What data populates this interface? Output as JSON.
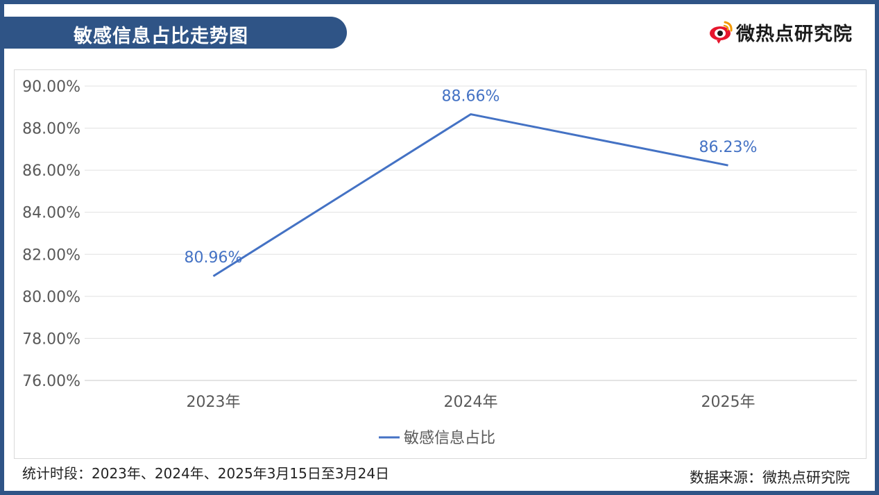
{
  "header": {
    "title": "敏感信息占比走势图",
    "brand": "微热点研究院",
    "brand_icon": "weibo-eye-logo-icon"
  },
  "colors": {
    "frame": "#2f5486",
    "series": "#4472c4",
    "grid": "#e0e0e0",
    "axis_text": "#595959"
  },
  "chart_data": {
    "type": "line",
    "categories": [
      "2023年",
      "2024年",
      "2025年"
    ],
    "series": [
      {
        "name": "敏感信息占比",
        "values": [
          80.96,
          88.66,
          86.23
        ],
        "labels": [
          "80.96%",
          "88.66%",
          "86.23%"
        ]
      }
    ],
    "ylim": [
      76,
      90
    ],
    "yticks": [
      90,
      88,
      86,
      84,
      82,
      80,
      78,
      76
    ],
    "ytick_labels": [
      "90.00%",
      "88.00%",
      "86.00%",
      "84.00%",
      "82.00%",
      "80.00%",
      "78.00%",
      "76.00%"
    ],
    "grid": true,
    "legend": "bottom-center"
  },
  "footer": {
    "period": "统计时段：2023年、2024年、2025年3月15日至3月24日",
    "source": "数据来源：微热点研究院"
  }
}
